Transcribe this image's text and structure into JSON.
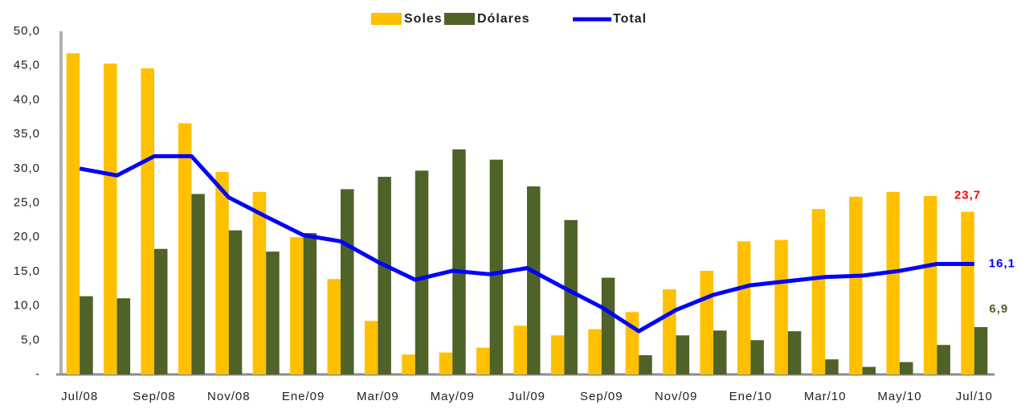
{
  "chart_data": {
    "type": "bar-line",
    "categories": [
      "Jul/08",
      null,
      "Sep/08",
      null,
      "Nov/08",
      null,
      "Ene/09",
      null,
      "Mar/09",
      null,
      "May/09",
      null,
      "Jul/09",
      null,
      "Sep/09",
      null,
      "Nov/09",
      null,
      "Ene/10",
      null,
      "Mar/10",
      null,
      "May/10",
      null,
      "Jul/10"
    ],
    "series": [
      {
        "name": "Soles",
        "type": "bar",
        "color": "#FFC000",
        "label_color": "#FF0000",
        "values": [
          46.8,
          45.3,
          44.6,
          36.6,
          29.5,
          26.6,
          20.0,
          13.9,
          7.8,
          2.9,
          3.2,
          3.9,
          7.1,
          5.7,
          6.6,
          9.1,
          12.4,
          15.1,
          19.4,
          19.6,
          24.1,
          25.9,
          26.6,
          26.0,
          23.7
        ],
        "value_labels": [
          null,
          null,
          null,
          null,
          null,
          null,
          null,
          null,
          null,
          null,
          null,
          null,
          null,
          null,
          null,
          null,
          null,
          null,
          null,
          null,
          null,
          null,
          null,
          null,
          "23,7"
        ]
      },
      {
        "name": "Dólares",
        "type": "bar",
        "color": "#4F6228",
        "label_color": "#4F6228",
        "values": [
          11.4,
          11.1,
          18.3,
          26.3,
          21.0,
          17.9,
          20.6,
          27.0,
          28.8,
          29.7,
          32.8,
          31.3,
          27.4,
          22.5,
          14.1,
          2.8,
          5.7,
          6.4,
          5.0,
          6.3,
          2.2,
          1.1,
          1.8,
          4.3,
          6.9
        ],
        "value_labels": [
          null,
          null,
          null,
          null,
          null,
          null,
          null,
          null,
          null,
          null,
          null,
          null,
          null,
          null,
          null,
          null,
          null,
          null,
          null,
          null,
          null,
          null,
          null,
          null,
          "6,9"
        ]
      },
      {
        "name": "Total",
        "type": "line",
        "color": "#0000FF",
        "label_color": "#0000FF",
        "values": [
          30.0,
          29.0,
          31.8,
          31.8,
          25.8,
          23.0,
          20.3,
          19.4,
          16.4,
          13.8,
          15.1,
          14.6,
          15.5,
          12.6,
          9.8,
          6.3,
          9.4,
          11.6,
          13.0,
          13.6,
          14.2,
          14.4,
          15.1,
          16.1,
          16.1
        ],
        "value_labels": [
          null,
          null,
          null,
          null,
          null,
          null,
          null,
          null,
          null,
          null,
          null,
          null,
          null,
          null,
          null,
          null,
          null,
          null,
          null,
          null,
          null,
          null,
          null,
          null,
          "16,1"
        ]
      }
    ],
    "ylim": [
      0,
      50
    ],
    "yticks": [
      {
        "value": 0,
        "label": "-"
      },
      {
        "value": 5,
        "label": "5,0"
      },
      {
        "value": 10,
        "label": "10,0"
      },
      {
        "value": 15,
        "label": "15,0"
      },
      {
        "value": 20,
        "label": "20,0"
      },
      {
        "value": 25,
        "label": "25,0"
      },
      {
        "value": 30,
        "label": "30,0"
      },
      {
        "value": 35,
        "label": "35,0"
      },
      {
        "value": 40,
        "label": "40,0"
      },
      {
        "value": 45,
        "label": "45,0"
      },
      {
        "value": 50,
        "label": "50,0"
      }
    ],
    "grid": false,
    "legend": "top"
  }
}
